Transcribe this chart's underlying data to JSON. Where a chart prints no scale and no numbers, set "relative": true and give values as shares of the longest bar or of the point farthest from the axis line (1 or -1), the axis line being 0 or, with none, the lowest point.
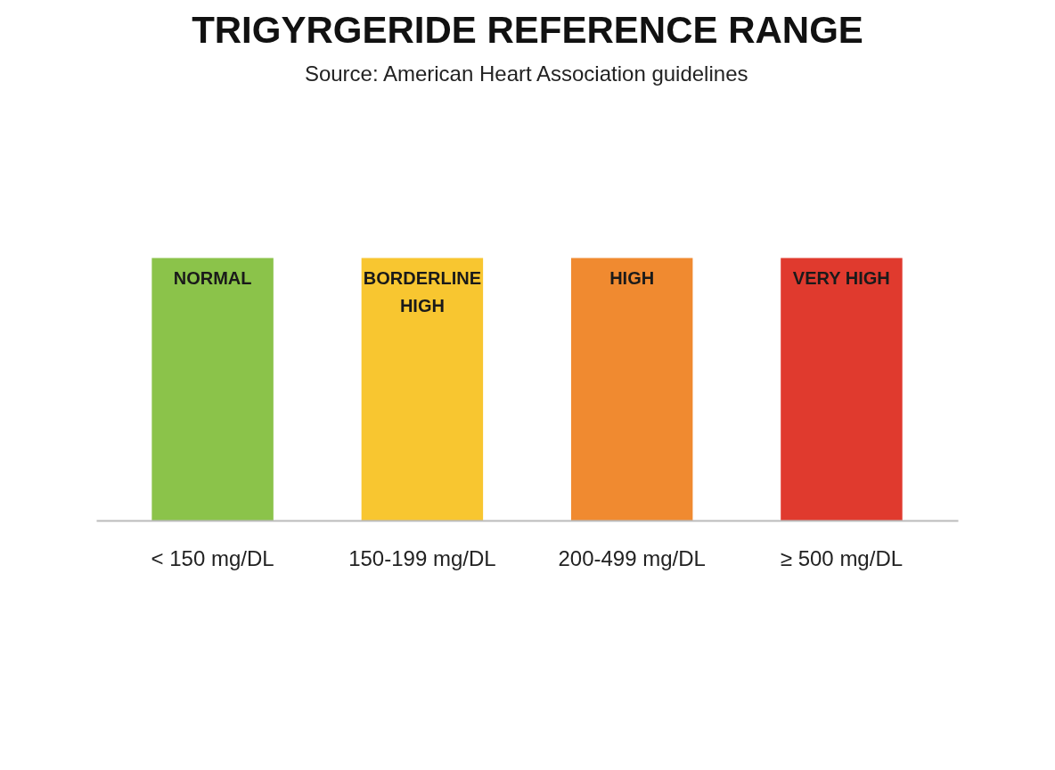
{
  "chart_data": {
    "type": "bar",
    "title": "TRIGYRGERIDE REFERENCE RANGE",
    "subtitle": "Source: American Heart Association guidelines",
    "relative": true,
    "categories": [
      "< 150 mg/DL",
      "150-199 mg/DL",
      "200-499 mg/DL",
      "≥ 500 mg/DL"
    ],
    "values": [
      1,
      1,
      1,
      1
    ],
    "colors": [
      "#8bc34a",
      "#f8c630",
      "#f08a30",
      "#e03a2e"
    ],
    "annotations": [
      {
        "text": "NORMAL",
        "x": "< 150 mg/DL",
        "y": 1
      },
      {
        "text": "BORDERLINE HIGH",
        "x": "150-199 mg/DL",
        "y": 1
      },
      {
        "text": "HIGH",
        "x": "200-499 mg/DL",
        "y": 1
      },
      {
        "text": "VERY HIGH",
        "x": "≥ 500 mg/DL",
        "y": 1
      }
    ],
    "grid": false
  }
}
